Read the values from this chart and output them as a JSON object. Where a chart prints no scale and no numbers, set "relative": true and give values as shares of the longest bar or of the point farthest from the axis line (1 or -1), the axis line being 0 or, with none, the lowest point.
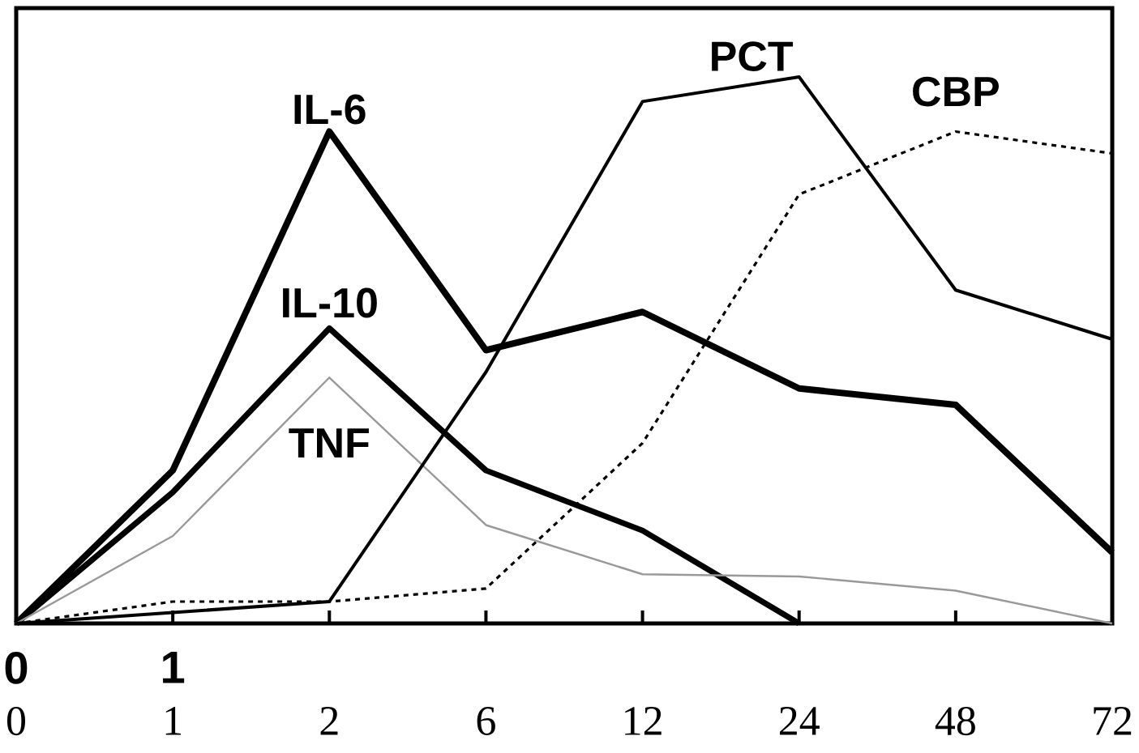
{
  "chart_data": {
    "type": "line",
    "relative": true,
    "categories": [
      "0",
      "1",
      "2",
      "6",
      "12",
      "24",
      "48",
      "72"
    ],
    "series": [
      {
        "name": "IL-6",
        "color": "#000000",
        "values": [
          0,
          0.28,
          0.9,
          0.5,
          0.57,
          0.43,
          0.4,
          0.13
        ]
      },
      {
        "name": "IL-10",
        "color": "#000000",
        "values": [
          0,
          0.24,
          0.54,
          0.28,
          0.17,
          0,
          null,
          null
        ]
      },
      {
        "name": "TNF",
        "color": "#999999",
        "values": [
          0,
          0.16,
          0.45,
          0.18,
          0.09,
          0.086,
          0.06,
          0
        ]
      },
      {
        "name": "PCT",
        "color": "#000000",
        "values": [
          0,
          0.02,
          0.04,
          0.46,
          0.955,
          1,
          0.61,
          0.52
        ]
      },
      {
        "name": "CBP",
        "color": "#000000",
        "line_style": "dashed",
        "values": [
          0,
          0.04,
          0.04,
          0.064,
          0.33,
          0.785,
          0.9,
          0.86
        ]
      }
    ],
    "annotations": [
      "0",
      "1"
    ],
    "legend": false,
    "grid": false,
    "marker": "none",
    "line_style": "solid"
  }
}
